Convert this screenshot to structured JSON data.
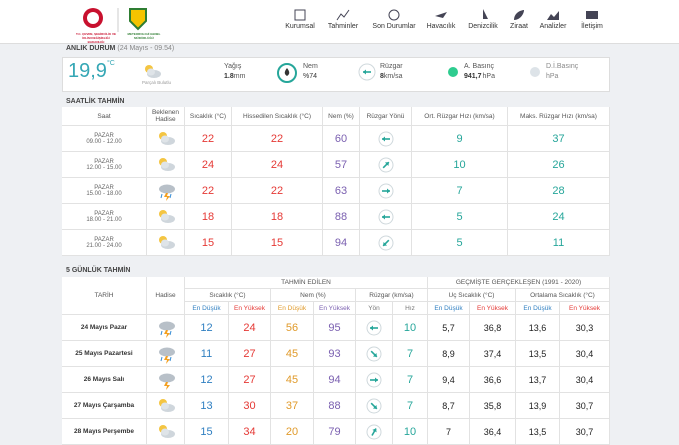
{
  "header": {
    "ministry": "T.C. ÇEVRE, ŞEHİRCİLİK VE İKLİM DEĞİŞİKLİĞİ BAKANLIĞI",
    "agency": "METEOROLOJİ GENEL MÜDÜRLÜĞÜ",
    "nav": [
      "Kurumsal",
      "Tahminler",
      "Son Durumlar",
      "Havacılık",
      "Denizcilik",
      "Ziraat",
      "Analizler",
      "İletişim"
    ]
  },
  "current": {
    "title": "ANLIK DURUM",
    "time": "(24 Mayıs - 09.54)",
    "temp": "19,9",
    "temp_unit": "°C",
    "condition": "Parçalı Bulutlu",
    "rain_label": "Yağış",
    "rain": "1.8",
    "rain_unit": "mm",
    "humidity_label": "Nem",
    "humidity": "%74",
    "wind_label": "Rüzgar",
    "wind": "8",
    "wind_unit": "km/sa",
    "pressure_label": "A. Basınç",
    "pressure": "941,7",
    "pressure_unit": "hPa",
    "sea_pressure_label": "D.İ.Basınç",
    "sea_pressure_unit": "hPa"
  },
  "hourly": {
    "title": "SAATLİK TAHMİN",
    "columns": [
      "Saat",
      "Beklenen Hadise",
      "Sıcaklık (°C)",
      "Hissedilen Sıcaklık (°C)",
      "Nem (%)",
      "Rüzgar Yönü",
      "Ort. Rüzgar Hızı (km/sa)",
      "Maks. Rüzgar Hızı (km/sa)"
    ],
    "rows": [
      [
        "PAZAR",
        "09.00 - 12.00",
        22,
        22,
        60,
        9,
        37
      ],
      [
        "PAZAR",
        "12.00 - 15.00",
        24,
        24,
        57,
        10,
        26
      ],
      [
        "PAZAR",
        "15.00 - 18.00",
        22,
        22,
        63,
        7,
        28
      ],
      [
        "PAZAR",
        "18.00 - 21.00",
        18,
        18,
        88,
        5,
        24
      ],
      [
        "PAZAR",
        "21.00 - 24.00",
        15,
        15,
        94,
        5,
        11
      ]
    ]
  },
  "daily": {
    "title": "5 GÜNLÜK TAHMİN",
    "date_header": "TARİH",
    "event_header": "Hadise",
    "forecast_header": "TAHMİN EDİLEN",
    "history_header": "GEÇMİŞTE GERÇEKLEŞEN (1991 - 2020)",
    "groups": [
      "Sıcaklık (°C)",
      "Nem (%)",
      "Rüzgar (km/sa)",
      "Uç Sıcaklık (°C)",
      "Ortalama Sıcaklık (°C)"
    ],
    "sub": [
      "En Düşük",
      "En Yüksek",
      "En Düşük",
      "En Yüksek",
      "Yön",
      "Hız",
      "En Düşük",
      "En Yüksek",
      "En Düşük",
      "En Yüksek"
    ],
    "rows": [
      [
        "24 Mayıs Pazar",
        12,
        24,
        56,
        95,
        10,
        "5,7",
        "36,8",
        "13,6",
        "30,3"
      ],
      [
        "25 Mayıs Pazartesi",
        11,
        27,
        45,
        93,
        7,
        "8,9",
        "37,4",
        "13,5",
        "30,4"
      ],
      [
        "26 Mayıs Salı",
        12,
        27,
        45,
        94,
        7,
        "9,4",
        "36,6",
        "13,7",
        "30,4"
      ],
      [
        "27 Mayıs Çarşamba",
        13,
        30,
        37,
        88,
        7,
        "8,7",
        "35,8",
        "13,9",
        "30,7"
      ],
      [
        "28 Mayıs Perşembe",
        15,
        34,
        20,
        79,
        10,
        7,
        "36,4",
        "13,5",
        "30,7"
      ]
    ]
  }
}
